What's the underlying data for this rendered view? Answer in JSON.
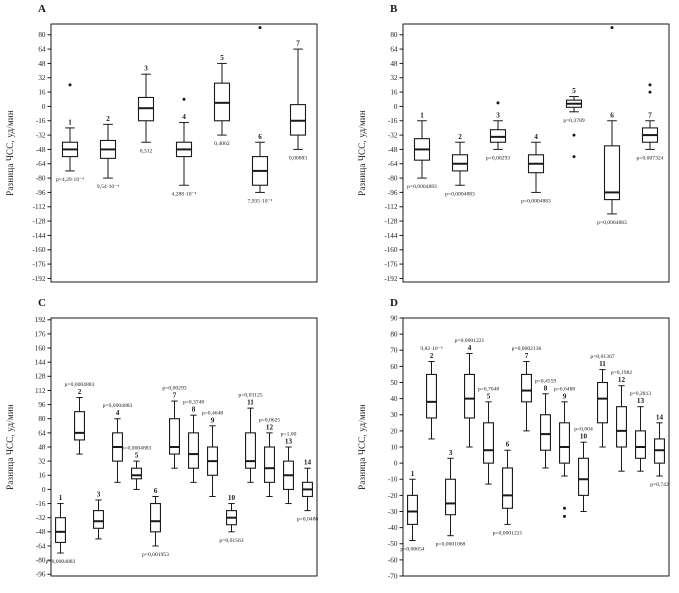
{
  "figure": {
    "background": "#ffffff",
    "ink": "#1a1a1a"
  },
  "chart_data": [
    {
      "type": "boxplot",
      "panel": "A",
      "ylabel": "Разница ЧСС, уд/мин",
      "ylim": [
        -196,
        92
      ],
      "yticks": [
        80,
        64,
        48,
        32,
        16,
        0,
        -16,
        -32,
        -48,
        -64,
        -80,
        -96,
        -112,
        -128,
        -144,
        -160,
        -176,
        -192
      ],
      "grid": false,
      "boxes": [
        {
          "num": "1",
          "whislo": -72,
          "q1": -56,
          "med": -48,
          "q3": -40,
          "whishi": -24,
          "outliers": [
            24
          ],
          "p": "p=4,29·10⁻⁴",
          "p_pos": "below"
        },
        {
          "num": "2",
          "whislo": -80,
          "q1": -58,
          "med": -48,
          "q3": -38,
          "whishi": -20,
          "p": "9,54·10⁻⁴",
          "p_pos": "below"
        },
        {
          "num": "3",
          "whislo": -40,
          "q1": -16,
          "med": -2,
          "q3": 10,
          "whishi": 36,
          "p": "0,312",
          "p_pos": "below"
        },
        {
          "num": "4",
          "whislo": -88,
          "q1": -56,
          "med": -48,
          "q3": -40,
          "whishi": -18,
          "outliers": [
            8
          ],
          "p": "4,288·10⁻⁴",
          "p_pos": "below"
        },
        {
          "num": "5",
          "whislo": -32,
          "q1": -16,
          "med": 4,
          "q3": 26,
          "whishi": 48,
          "p": "0,4062",
          "p_pos": "below"
        },
        {
          "num": "6",
          "whislo": -96,
          "q1": -88,
          "med": -72,
          "q3": -56,
          "whishi": -40,
          "outliers": [
            88
          ],
          "p": "7,935·10⁻⁴",
          "p_pos": "below"
        },
        {
          "num": "7",
          "whislo": -48,
          "q1": -32,
          "med": -16,
          "q3": 2,
          "whishi": 64,
          "p": "0,00883",
          "p_pos": "below"
        }
      ]
    },
    {
      "type": "boxplot",
      "panel": "B",
      "ylabel": "Разница ЧСС, уд/мин",
      "ylim": [
        -196,
        92
      ],
      "yticks": [
        80,
        64,
        48,
        32,
        16,
        0,
        -16,
        -32,
        -48,
        -64,
        -80,
        -96,
        -112,
        -128,
        -144,
        -160,
        -176,
        -192
      ],
      "grid": false,
      "boxes": [
        {
          "num": "1",
          "whislo": -80,
          "q1": -60,
          "med": -48,
          "q3": -36,
          "whishi": -16,
          "p": "p=0,0004883",
          "p_pos": "below"
        },
        {
          "num": "2",
          "whislo": -88,
          "q1": -72,
          "med": -64,
          "q3": -54,
          "whishi": -40,
          "p": "p=0,0004883",
          "p_pos": "below"
        },
        {
          "num": "3",
          "whislo": -48,
          "q1": -40,
          "med": -34,
          "q3": -26,
          "whishi": -16,
          "outliers": [
            4
          ],
          "p": "p=0,00293",
          "p_pos": "below"
        },
        {
          "num": "4",
          "whislo": -96,
          "q1": -74,
          "med": -64,
          "q3": -54,
          "whishi": -40,
          "p": "p=0,0004883",
          "p_pos": "below"
        },
        {
          "num": "5",
          "whislo": -6,
          "q1": -1,
          "med": 3,
          "q3": 7,
          "whishi": 11,
          "outliers": [
            -32,
            -56
          ],
          "p": "p=0,3789",
          "p_pos": "below"
        },
        {
          "num": "6",
          "whislo": -120,
          "q1": -104,
          "med": -96,
          "q3": -44,
          "whishi": -16,
          "outliers": [
            88
          ],
          "p": "p=0,0004883",
          "p_pos": "below"
        },
        {
          "num": "7",
          "whislo": -48,
          "q1": -40,
          "med": -32,
          "q3": -24,
          "whishi": -16,
          "outliers": [
            16,
            24
          ],
          "p": "p=0,007324",
          "p_pos": "below"
        }
      ]
    },
    {
      "type": "boxplot",
      "panel": "C",
      "ylabel": "Разница ЧСС, уд/мин",
      "ylim": [
        -98,
        194
      ],
      "yticks": [
        192,
        176,
        160,
        144,
        128,
        112,
        96,
        80,
        64,
        48,
        32,
        16,
        0,
        -16,
        -32,
        -48,
        -64,
        -80,
        -96
      ],
      "grid": false,
      "boxes": [
        {
          "num": "1",
          "whislo": -72,
          "q1": -60,
          "med": -48,
          "q3": -32,
          "whishi": -16,
          "p": "p=0,0004883",
          "p_pos": "below"
        },
        {
          "num": "2",
          "whislo": 40,
          "q1": 56,
          "med": 64,
          "q3": 88,
          "whishi": 104,
          "p": "p=0,0004883",
          "p_pos": "above"
        },
        {
          "num": "3",
          "whislo": -56,
          "q1": -44,
          "med": -36,
          "q3": -24,
          "whishi": -12
        },
        {
          "num": "4",
          "whislo": 8,
          "q1": 32,
          "med": 48,
          "q3": 64,
          "whishi": 80,
          "p": "p=0,0004883",
          "p_pos": "above"
        },
        {
          "num": "5",
          "whislo": 0,
          "q1": 12,
          "med": 16,
          "q3": 24,
          "whishi": 32,
          "p": "p=0,0004883",
          "p_pos": "above"
        },
        {
          "num": "6",
          "whislo": -64,
          "q1": -48,
          "med": -36,
          "q3": -16,
          "whishi": -8,
          "p": "p=0,001953",
          "p_pos": "below"
        },
        {
          "num": "7",
          "whislo": 24,
          "q1": 40,
          "med": 48,
          "q3": 80,
          "whishi": 100,
          "p": "p=0,00293",
          "p_pos": "above"
        },
        {
          "num": "8",
          "whislo": 8,
          "q1": 24,
          "med": 40,
          "q3": 64,
          "whishi": 84,
          "p": "p=0,3748",
          "p_pos": "above"
        },
        {
          "num": "9",
          "whislo": -8,
          "q1": 16,
          "med": 32,
          "q3": 48,
          "whishi": 72,
          "p": "p=0,4648",
          "p_pos": "above"
        },
        {
          "num": "10",
          "whislo": -48,
          "q1": -40,
          "med": -32,
          "q3": -24,
          "whishi": -16,
          "p": "p=0,01563",
          "p_pos": "below"
        },
        {
          "num": "11",
          "whislo": 8,
          "q1": 24,
          "med": 32,
          "q3": 64,
          "whishi": 92,
          "p": "p=0,03125",
          "p_pos": "above"
        },
        {
          "num": "12",
          "whislo": -8,
          "q1": 8,
          "med": 24,
          "q3": 48,
          "whishi": 64,
          "p": "p=0,0625",
          "p_pos": "above"
        },
        {
          "num": "13",
          "whislo": -16,
          "q1": 0,
          "med": 16,
          "q3": 32,
          "whishi": 48,
          "p": "p=1,00",
          "p_pos": "above"
        },
        {
          "num": "14",
          "whislo": -24,
          "q1": -8,
          "med": 0,
          "q3": 8,
          "whishi": 24,
          "p": "p=0,0488",
          "p_pos": "below"
        }
      ]
    },
    {
      "type": "boxplot",
      "panel": "D",
      "ylabel": "Разница ЧСС, уд/мин",
      "ylim": [
        -70,
        90
      ],
      "yticks": [
        90,
        80,
        70,
        60,
        50,
        40,
        30,
        20,
        10,
        0,
        -10,
        -20,
        -30,
        -40,
        -50,
        -60,
        -70
      ],
      "grid": false,
      "boxes": [
        {
          "num": "1",
          "whislo": -48,
          "q1": -38,
          "med": -30,
          "q3": -20,
          "whishi": -10,
          "p": "p=0,00654",
          "p_pos": "below"
        },
        {
          "num": "2",
          "whislo": 15,
          "q1": 28,
          "med": 38,
          "q3": 55,
          "whishi": 63,
          "p": "9,82·10⁻⁴",
          "p_pos": "above"
        },
        {
          "num": "3",
          "whislo": -45,
          "q1": -32,
          "med": -25,
          "q3": -10,
          "whishi": 3,
          "p": "p=0,0001068",
          "p_pos": "below"
        },
        {
          "num": "4",
          "whislo": 10,
          "q1": 28,
          "med": 40,
          "q3": 55,
          "whishi": 68,
          "p": "p=0,0001221",
          "p_pos": "above"
        },
        {
          "num": "5",
          "whislo": -13,
          "q1": 0,
          "med": 8,
          "q3": 25,
          "whishi": 38,
          "p": "p=0,7048",
          "p_pos": "above"
        },
        {
          "num": "6",
          "whislo": -38,
          "q1": -28,
          "med": -20,
          "q3": -3,
          "whishi": 8,
          "p": "p=0,0001221",
          "p_pos": "below"
        },
        {
          "num": "7",
          "whislo": 20,
          "q1": 38,
          "med": 45,
          "q3": 55,
          "whishi": 63,
          "p": "p=0,0002136",
          "p_pos": "above"
        },
        {
          "num": "8",
          "whislo": -3,
          "q1": 8,
          "med": 18,
          "q3": 30,
          "whishi": 43,
          "p": "p=0,4559",
          "p_pos": "above"
        },
        {
          "num": "9",
          "whislo": -8,
          "q1": 0,
          "med": 10,
          "q3": 25,
          "whishi": 38,
          "outliers": [
            -28,
            -33
          ],
          "p": "p=0,6488",
          "p_pos": "above"
        },
        {
          "num": "10",
          "whislo": -30,
          "q1": -20,
          "med": -10,
          "q3": 3,
          "whishi": 13,
          "p": "p=0,004",
          "p_pos": "above"
        },
        {
          "num": "11",
          "whislo": 10,
          "q1": 25,
          "med": 40,
          "q3": 50,
          "whishi": 58,
          "p": "p=0,01367",
          "p_pos": "above"
        },
        {
          "num": "12",
          "whislo": -5,
          "q1": 10,
          "med": 20,
          "q3": 35,
          "whishi": 48,
          "p": "p=0,1982",
          "p_pos": "above"
        },
        {
          "num": "13",
          "whislo": -5,
          "q1": 3,
          "med": 10,
          "q3": 20,
          "whishi": 35,
          "p": "p=0,2813",
          "p_pos": "above"
        },
        {
          "num": "14",
          "whislo": -8,
          "q1": 0,
          "med": 8,
          "q3": 15,
          "whishi": 25,
          "p": "p=0,742",
          "p_pos": "below"
        }
      ]
    }
  ]
}
